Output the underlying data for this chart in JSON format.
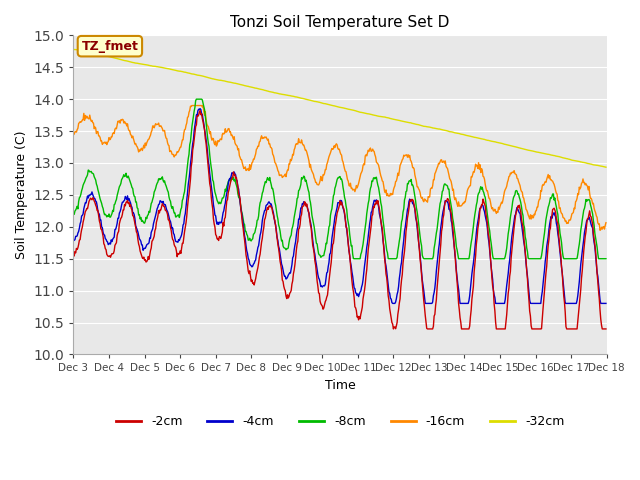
{
  "title": "Tonzi Soil Temperature Set D",
  "xlabel": "Time",
  "ylabel": "Soil Temperature (C)",
  "ylim": [
    10.0,
    15.0
  ],
  "yticks": [
    10.0,
    10.5,
    11.0,
    11.5,
    12.0,
    12.5,
    13.0,
    13.5,
    14.0,
    14.5,
    15.0
  ],
  "colors": {
    "-2cm": "#cc0000",
    "-4cm": "#0000cc",
    "-8cm": "#00bb00",
    "-16cm": "#ff8800",
    "-32cm": "#dddd00"
  },
  "legend_labels": [
    "-2cm",
    "-4cm",
    "-8cm",
    "-16cm",
    "-32cm"
  ],
  "annotation_text": "TZ_fmet",
  "annotation_color": "#8b0000",
  "annotation_bg": "#ffffcc",
  "annotation_border": "#cc8800",
  "x_tick_labels": [
    "Dec 3",
    "Dec 4",
    "Dec 5",
    "Dec 6",
    "Dec 7",
    "Dec 8",
    "Dec 9",
    "Dec 10",
    "Dec 11",
    "Dec 12",
    "Dec 13",
    "Dec 14",
    "Dec 15",
    "Dec 16",
    "Dec 17",
    "Dec 18"
  ],
  "plot_bg_color": "#e8e8e8",
  "grid_color": "#ffffff"
}
